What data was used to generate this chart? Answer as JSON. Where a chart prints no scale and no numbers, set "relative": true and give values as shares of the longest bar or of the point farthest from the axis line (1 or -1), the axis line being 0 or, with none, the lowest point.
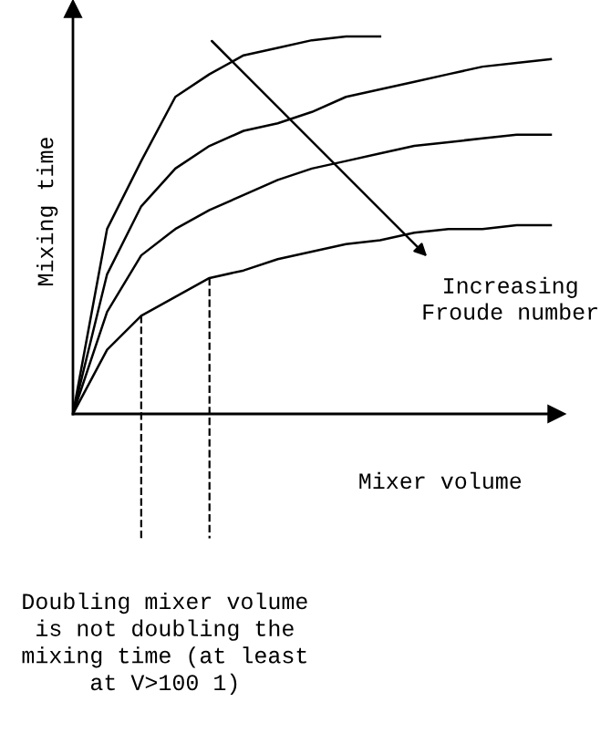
{
  "chart_data": {
    "type": "line",
    "relative": true,
    "xlabel": "Mixer volume",
    "ylabel": "Mixing time",
    "categories": [
      null,
      null,
      null,
      null,
      null,
      null,
      null,
      null,
      null,
      null,
      null,
      null,
      null,
      null,
      null
    ],
    "series": [
      {
        "color": "#000000",
        "values": [
          0,
          0.49,
          0.67,
          0.84,
          0.9,
          0.95,
          0.97,
          0.99,
          1.0,
          1.0,
          null,
          null,
          null,
          null,
          null
        ]
      },
      {
        "color": "#000000",
        "values": [
          0,
          0.37,
          0.55,
          0.65,
          0.71,
          0.75,
          0.77,
          0.8,
          0.84,
          0.86,
          0.88,
          0.9,
          0.92,
          0.93,
          0.94
        ]
      },
      {
        "color": "#000000",
        "values": [
          0,
          0.27,
          0.42,
          0.49,
          0.54,
          0.58,
          0.62,
          0.65,
          0.67,
          0.69,
          0.71,
          0.72,
          0.73,
          0.74,
          0.74
        ]
      },
      {
        "color": "#000000",
        "values": [
          0,
          0.17,
          0.26,
          0.31,
          0.36,
          0.38,
          0.41,
          0.43,
          0.45,
          0.46,
          0.48,
          0.49,
          0.49,
          0.5,
          0.5
        ]
      }
    ],
    "annotations": [
      "Increasing\nFroude number",
      "Doubling mixer volume\nis not doubling the\nmixing time (at least\nat V>100 1)"
    ],
    "tick_labels": false,
    "legend": false,
    "marker": "none",
    "line_style": "solid"
  }
}
